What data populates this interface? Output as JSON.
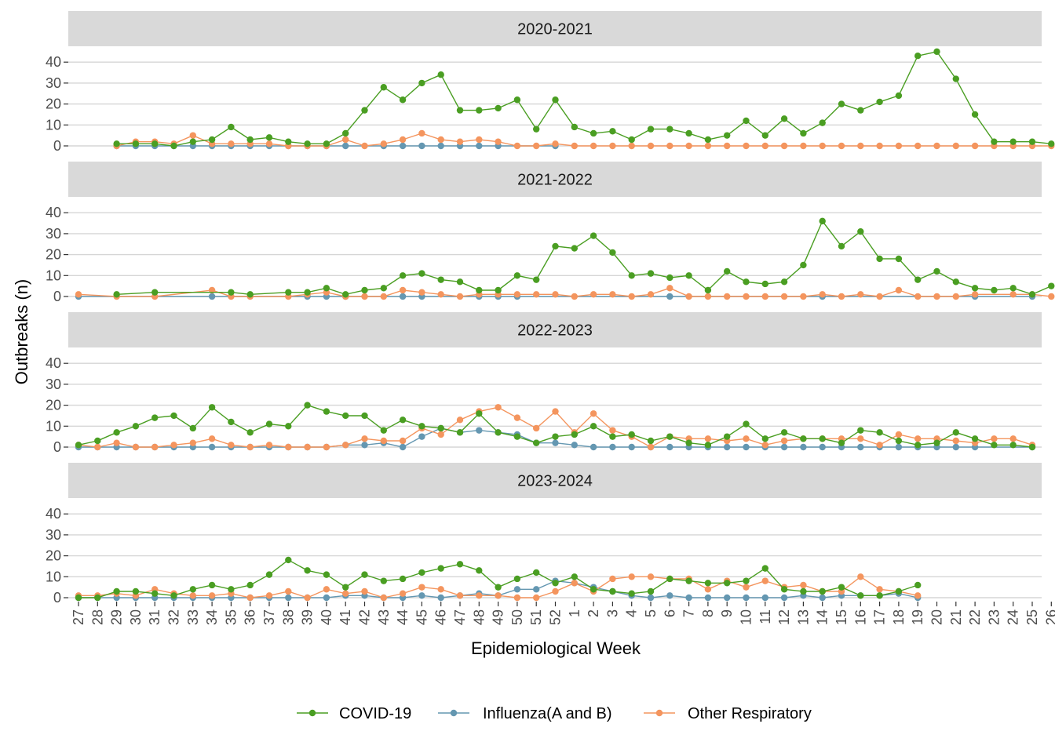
{
  "chart_data": {
    "type": "line",
    "xlabel": "Epidemiological Week",
    "ylabel": "Outbreaks (n)",
    "ylim": [
      0,
      45
    ],
    "yticks": [
      0,
      10,
      20,
      30,
      40
    ],
    "grid": true,
    "legend_position": "bottom",
    "categories": [
      "27",
      "28",
      "29",
      "30",
      "31",
      "32",
      "33",
      "34",
      "35",
      "36",
      "37",
      "38",
      "39",
      "40",
      "41",
      "42",
      "43",
      "44",
      "45",
      "46",
      "47",
      "48",
      "49",
      "50",
      "51",
      "52",
      "1",
      "2",
      "3",
      "4",
      "5",
      "6",
      "7",
      "8",
      "9",
      "10",
      "11",
      "12",
      "13",
      "14",
      "15",
      "16",
      "17",
      "18",
      "19",
      "20",
      "21",
      "22",
      "23",
      "24",
      "25",
      "26"
    ],
    "series_meta": [
      {
        "name": "COVID-19",
        "color": "#4a9e22"
      },
      {
        "name": "Influenza(A and B)",
        "color": "#6497b1"
      },
      {
        "name": "Other Respiratory",
        "color": "#f4955e"
      }
    ],
    "panels": [
      {
        "title": "2020-2021",
        "series": [
          {
            "name": "COVID-19",
            "values": [
              null,
              null,
              1,
              1,
              1,
              0,
              2,
              3,
              9,
              3,
              4,
              2,
              1,
              1,
              6,
              17,
              28,
              22,
              30,
              34,
              17,
              17,
              18,
              22,
              8,
              22,
              9,
              6,
              7,
              3,
              8,
              8,
              6,
              3,
              5,
              12,
              5,
              13,
              6,
              11,
              20,
              17,
              21,
              24,
              43,
              45,
              32,
              15,
              2,
              2,
              2,
              1
            ]
          },
          {
            "name": "Influenza(A and B)",
            "values": [
              null,
              null,
              0,
              0,
              0,
              0,
              0,
              0,
              0,
              0,
              0,
              0,
              0,
              0,
              0,
              null,
              0,
              0,
              0,
              0,
              0,
              0,
              0,
              null,
              null,
              0,
              null,
              null,
              null,
              null,
              null,
              null,
              null,
              null,
              null,
              null,
              null,
              null,
              null,
              null,
              null,
              null,
              null,
              null,
              null,
              null,
              null,
              null,
              null,
              null,
              null,
              null
            ]
          },
          {
            "name": "Other Respiratory",
            "values": [
              null,
              null,
              0,
              2,
              2,
              1,
              5,
              1,
              1,
              1,
              1,
              0,
              0,
              0,
              3,
              0,
              1,
              3,
              6,
              3,
              2,
              3,
              2,
              0,
              0,
              1,
              0,
              0,
              0,
              0,
              0,
              0,
              0,
              0,
              0,
              0,
              0,
              0,
              0,
              0,
              0,
              0,
              0,
              0,
              0,
              0,
              0,
              0,
              0,
              0,
              0,
              0
            ]
          }
        ]
      },
      {
        "title": "2021-2022",
        "series": [
          {
            "name": "COVID-19",
            "values": [
              null,
              null,
              1,
              null,
              2,
              null,
              null,
              null,
              2,
              1,
              null,
              2,
              2,
              4,
              1,
              3,
              4,
              10,
              11,
              8,
              7,
              3,
              3,
              10,
              8,
              24,
              23,
              29,
              21,
              10,
              11,
              9,
              10,
              3,
              12,
              7,
              6,
              7,
              15,
              36,
              24,
              31,
              18,
              18,
              8,
              12,
              7,
              4,
              3,
              4,
              1,
              5
            ]
          },
          {
            "name": "Influenza(A and B)",
            "values": [
              0,
              null,
              null,
              null,
              null,
              null,
              null,
              0,
              null,
              null,
              null,
              null,
              0,
              0,
              0,
              null,
              null,
              0,
              0,
              null,
              null,
              0,
              0,
              0,
              null,
              null,
              null,
              null,
              null,
              null,
              null,
              0,
              null,
              null,
              null,
              null,
              null,
              null,
              null,
              0,
              null,
              null,
              null,
              null,
              null,
              null,
              null,
              0,
              null,
              null,
              0,
              null
            ]
          },
          {
            "name": "Other Respiratory",
            "values": [
              1,
              null,
              0,
              null,
              0,
              null,
              null,
              3,
              0,
              0,
              null,
              0,
              1,
              2,
              0,
              0,
              0,
              3,
              2,
              1,
              0,
              1,
              1,
              1,
              1,
              1,
              0,
              1,
              1,
              0,
              1,
              4,
              0,
              0,
              0,
              0,
              0,
              0,
              0,
              1,
              0,
              1,
              0,
              3,
              0,
              0,
              0,
              1,
              null,
              1,
              1,
              0
            ]
          }
        ]
      },
      {
        "title": "2022-2023",
        "series": [
          {
            "name": "COVID-19",
            "values": [
              1,
              3,
              7,
              10,
              14,
              15,
              9,
              19,
              12,
              7,
              11,
              10,
              20,
              17,
              15,
              15,
              8,
              13,
              10,
              9,
              7,
              16,
              7,
              5,
              2,
              5,
              6,
              10,
              5,
              6,
              3,
              5,
              2,
              1,
              5,
              11,
              4,
              7,
              4,
              4,
              2,
              8,
              7,
              3,
              1,
              2,
              7,
              4,
              1,
              1,
              0,
              null
            ]
          },
          {
            "name": "Influenza(A and B)",
            "values": [
              0,
              0,
              0,
              0,
              0,
              0,
              0,
              0,
              0,
              0,
              0,
              0,
              0,
              0,
              1,
              1,
              2,
              0,
              5,
              9,
              7,
              8,
              7,
              6,
              2,
              2,
              1,
              0,
              0,
              0,
              0,
              0,
              0,
              0,
              0,
              0,
              0,
              0,
              0,
              0,
              0,
              0,
              0,
              0,
              0,
              0,
              0,
              0,
              null,
              null,
              0,
              null
            ]
          },
          {
            "name": "Other Respiratory",
            "values": [
              1,
              0,
              2,
              0,
              0,
              1,
              2,
              4,
              1,
              0,
              1,
              0,
              0,
              0,
              1,
              4,
              3,
              3,
              9,
              6,
              13,
              17,
              19,
              14,
              9,
              17,
              7,
              16,
              8,
              5,
              0,
              5,
              4,
              4,
              3,
              4,
              1,
              3,
              4,
              4,
              4,
              4,
              1,
              6,
              4,
              4,
              3,
              2,
              4,
              4,
              1,
              null
            ]
          }
        ]
      },
      {
        "title": "2023-2024",
        "series": [
          {
            "name": "COVID-19",
            "values": [
              0,
              0,
              3,
              3,
              2,
              1,
              4,
              6,
              4,
              6,
              11,
              18,
              13,
              11,
              5,
              11,
              8,
              9,
              12,
              14,
              16,
              13,
              5,
              9,
              12,
              7,
              10,
              4,
              3,
              2,
              3,
              9,
              8,
              7,
              7,
              8,
              14,
              4,
              3,
              3,
              5,
              1,
              1,
              3,
              6,
              null,
              null,
              null,
              null,
              null,
              null,
              null
            ]
          },
          {
            "name": "Influenza(A and B)",
            "values": [
              0,
              0,
              0,
              0,
              0,
              0,
              0,
              0,
              0,
              0,
              0,
              0,
              0,
              0,
              1,
              1,
              0,
              0,
              1,
              0,
              1,
              2,
              1,
              4,
              4,
              8,
              7,
              5,
              3,
              1,
              0,
              1,
              0,
              0,
              0,
              0,
              0,
              0,
              1,
              0,
              1,
              1,
              1,
              2,
              0,
              null,
              null,
              null,
              null,
              null,
              null,
              null
            ]
          },
          {
            "name": "Other Respiratory",
            "values": [
              1,
              1,
              2,
              1,
              4,
              2,
              1,
              1,
              2,
              0,
              1,
              3,
              0,
              4,
              2,
              3,
              0,
              2,
              5,
              4,
              1,
              1,
              1,
              0,
              0,
              3,
              7,
              3,
              9,
              10,
              10,
              9,
              9,
              4,
              8,
              5,
              8,
              5,
              6,
              3,
              3,
              10,
              4,
              3,
              1,
              null,
              null,
              null,
              null,
              null,
              null,
              null
            ]
          }
        ]
      }
    ]
  }
}
